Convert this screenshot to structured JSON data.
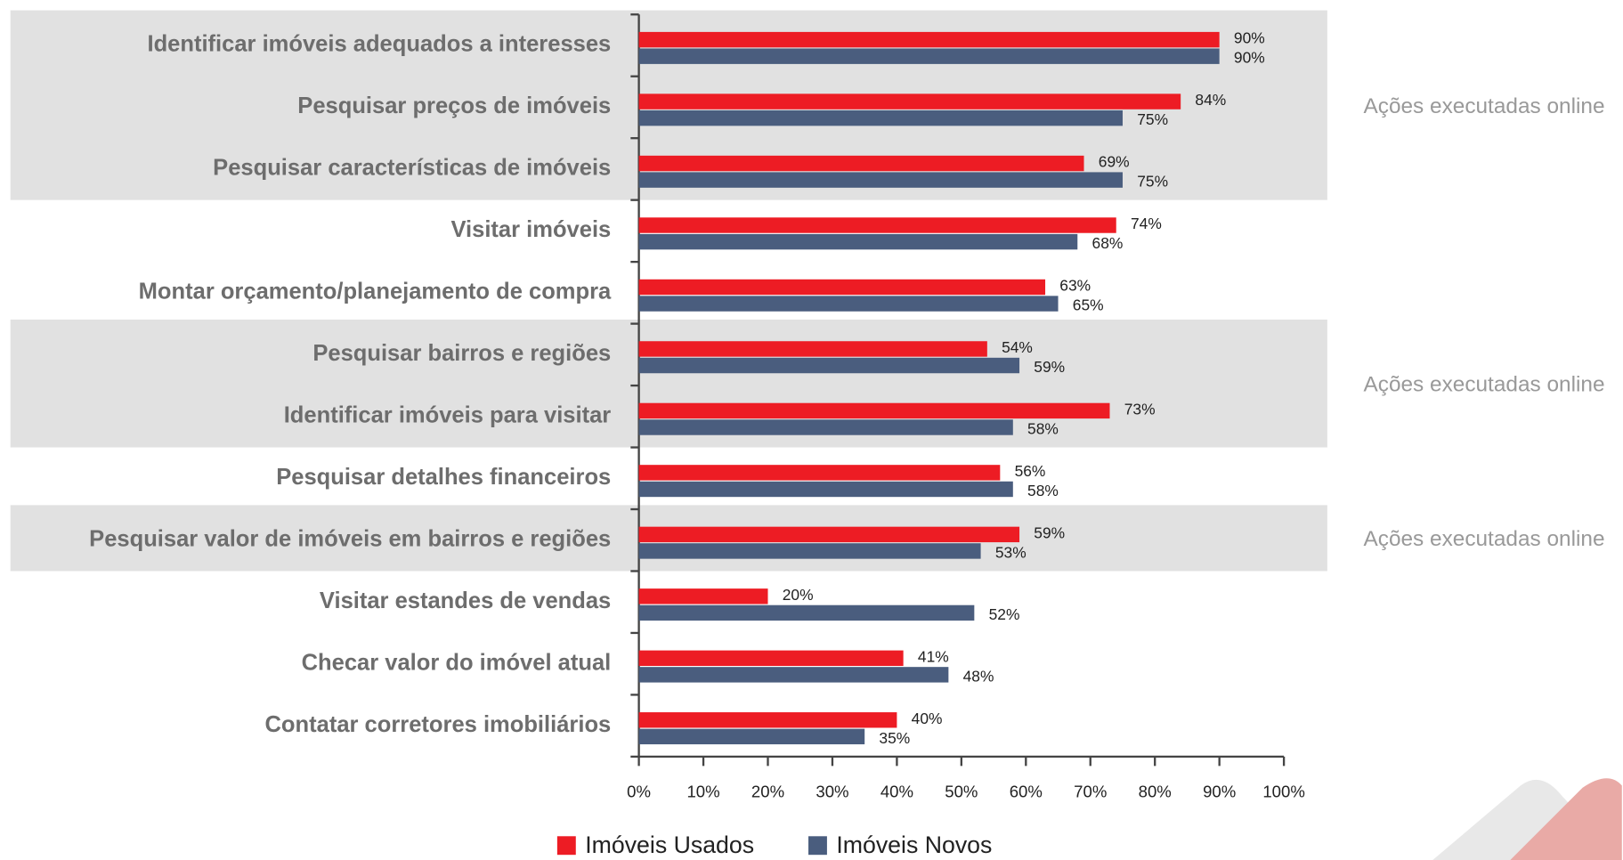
{
  "chart_data": {
    "type": "hbar",
    "categories": [
      "Identificar imóveis adequados a interesses",
      "Pesquisar preços de imóveis",
      "Pesquisar características de imóveis",
      "Visitar imóveis",
      "Montar orçamento/planejamento de compra",
      "Pesquisar bairros e regiões",
      "Identificar imóveis para visitar",
      "Pesquisar detalhes financeiros",
      "Pesquisar valor de imóveis em bairros e regiões",
      "Visitar estandes de vendas",
      "Checar valor do imóvel atual",
      "Contatar corretores imobiliários"
    ],
    "series": [
      {
        "name": "Imóveis Usados",
        "color": "#ed1c24",
        "values": [
          90,
          84,
          69,
          74,
          63,
          54,
          73,
          56,
          59,
          20,
          41,
          40
        ],
        "value_labels": [
          "90%",
          "84%",
          "69%",
          "74%",
          "63%",
          "54%",
          "73%",
          "56%",
          "59%",
          "20%",
          "41%",
          "40%"
        ]
      },
      {
        "name": "Imóveis Novos",
        "color": "#4a5d7e",
        "values": [
          90,
          75,
          75,
          68,
          65,
          59,
          58,
          58,
          53,
          52,
          48,
          35
        ],
        "value_labels": [
          "90%",
          "75%",
          "75%",
          "68%",
          "65%",
          "59%",
          "58%",
          "58%",
          "53%",
          "52%",
          "48%",
          "35%"
        ]
      }
    ],
    "highlight": [
      true,
      true,
      true,
      false,
      false,
      true,
      true,
      false,
      true,
      false,
      false,
      false
    ],
    "annotations": [
      "Ações executadas online",
      "Ações executadas online",
      "Ações executadas online"
    ],
    "xlim": [
      0,
      100
    ],
    "xticks": [
      {
        "value": 0,
        "label": "0%"
      },
      {
        "value": 10,
        "label": "10%"
      },
      {
        "value": 20,
        "label": "20%"
      },
      {
        "value": 30,
        "label": "30%"
      },
      {
        "value": 40,
        "label": "40%"
      },
      {
        "value": 50,
        "label": "50%"
      },
      {
        "value": 60,
        "label": "60%"
      },
      {
        "value": 70,
        "label": "70%"
      },
      {
        "value": 80,
        "label": "80%"
      },
      {
        "value": 90,
        "label": "90%"
      },
      {
        "value": 100,
        "label": "100%"
      }
    ]
  }
}
